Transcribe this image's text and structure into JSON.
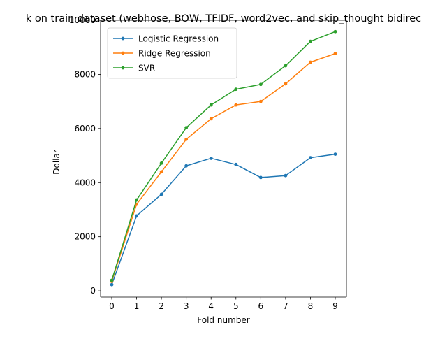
{
  "chart_data": {
    "type": "line",
    "title": "k on train dataset (webhose, BOW, TFIDF, word2vec, and skip_thought bidirec",
    "xlabel": "Fold number",
    "ylabel": "Dollar",
    "x": [
      0,
      1,
      2,
      3,
      4,
      5,
      6,
      7,
      8,
      9
    ],
    "xlim": [
      -0.45,
      9.45
    ],
    "ylim": [
      -230,
      10000
    ],
    "xticks": [
      0,
      1,
      2,
      3,
      4,
      5,
      6,
      7,
      8,
      9
    ],
    "yticks": [
      0,
      2000,
      4000,
      6000,
      8000,
      10000
    ],
    "grid": false,
    "legend_position": "top-left",
    "series": [
      {
        "name": "Logistic Regression",
        "color": "#1f77b4",
        "values": [
          230,
          2770,
          3570,
          4620,
          4900,
          4670,
          4190,
          4260,
          4920,
          5050
        ]
      },
      {
        "name": "Ridge Regression",
        "color": "#ff7f0e",
        "values": [
          350,
          3200,
          4400,
          5600,
          6360,
          6870,
          7000,
          7650,
          8450,
          8770
        ]
      },
      {
        "name": "SVR",
        "color": "#2ca02c",
        "values": [
          390,
          3360,
          4720,
          6030,
          6870,
          7450,
          7630,
          8320,
          9220,
          9580
        ]
      }
    ]
  }
}
